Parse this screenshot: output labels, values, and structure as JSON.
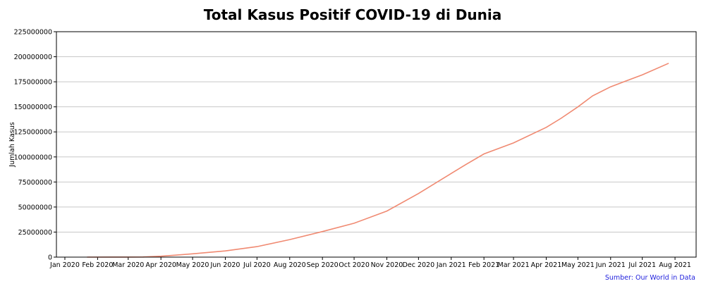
{
  "chart_data": {
    "type": "line",
    "title": "Total Kasus Positif COVID-19 di Dunia",
    "xlabel": "",
    "ylabel": "Jumlah Kasus",
    "source": "Sumber: Our World in Data",
    "ylim": [
      0,
      225000000
    ],
    "y_ticks": [
      0,
      25000000,
      50000000,
      75000000,
      100000000,
      125000000,
      150000000,
      175000000,
      200000000,
      225000000
    ],
    "x_ticks": [
      "Jan 2020",
      "Feb 2020",
      "Mar 2020",
      "Apr 2020",
      "May 2020",
      "Jun 2020",
      "Jul 2020",
      "Aug 2020",
      "Sep 2020",
      "Oct 2020",
      "Nov 2020",
      "Dec 2020",
      "Jan 2021",
      "Feb 2021",
      "Mar 2021",
      "Apr 2021",
      "May 2021",
      "Jun 2021",
      "Jul 2021",
      "Aug 2021"
    ],
    "xlim": [
      "2019-12-24",
      "2021-08-21"
    ],
    "grid": "horizontal",
    "line_color": "#f08a72",
    "series": [
      {
        "x": [
          "2020-01-22",
          "2020-02-15",
          "2020-03-01",
          "2020-03-15",
          "2020-04-01",
          "2020-04-15",
          "2020-05-01",
          "2020-06-01",
          "2020-07-01",
          "2020-08-01",
          "2020-09-01",
          "2020-10-01",
          "2020-11-01",
          "2020-12-01",
          "2021-01-01",
          "2021-01-15",
          "2021-02-01",
          "2021-03-01",
          "2021-04-01",
          "2021-04-15",
          "2021-05-01",
          "2021-05-15",
          "2021-06-01",
          "2021-07-01",
          "2021-07-26"
        ],
        "values": [
          600,
          70000,
          90000,
          170000,
          900000,
          2000000,
          3300000,
          6200000,
          10500000,
          17500000,
          25500000,
          33800000,
          46000000,
          63500000,
          83500000,
          92500000,
          103000000,
          114000000,
          129500000,
          138500000,
          150000000,
          161000000,
          170000000,
          182000000,
          193500000
        ]
      }
    ]
  }
}
